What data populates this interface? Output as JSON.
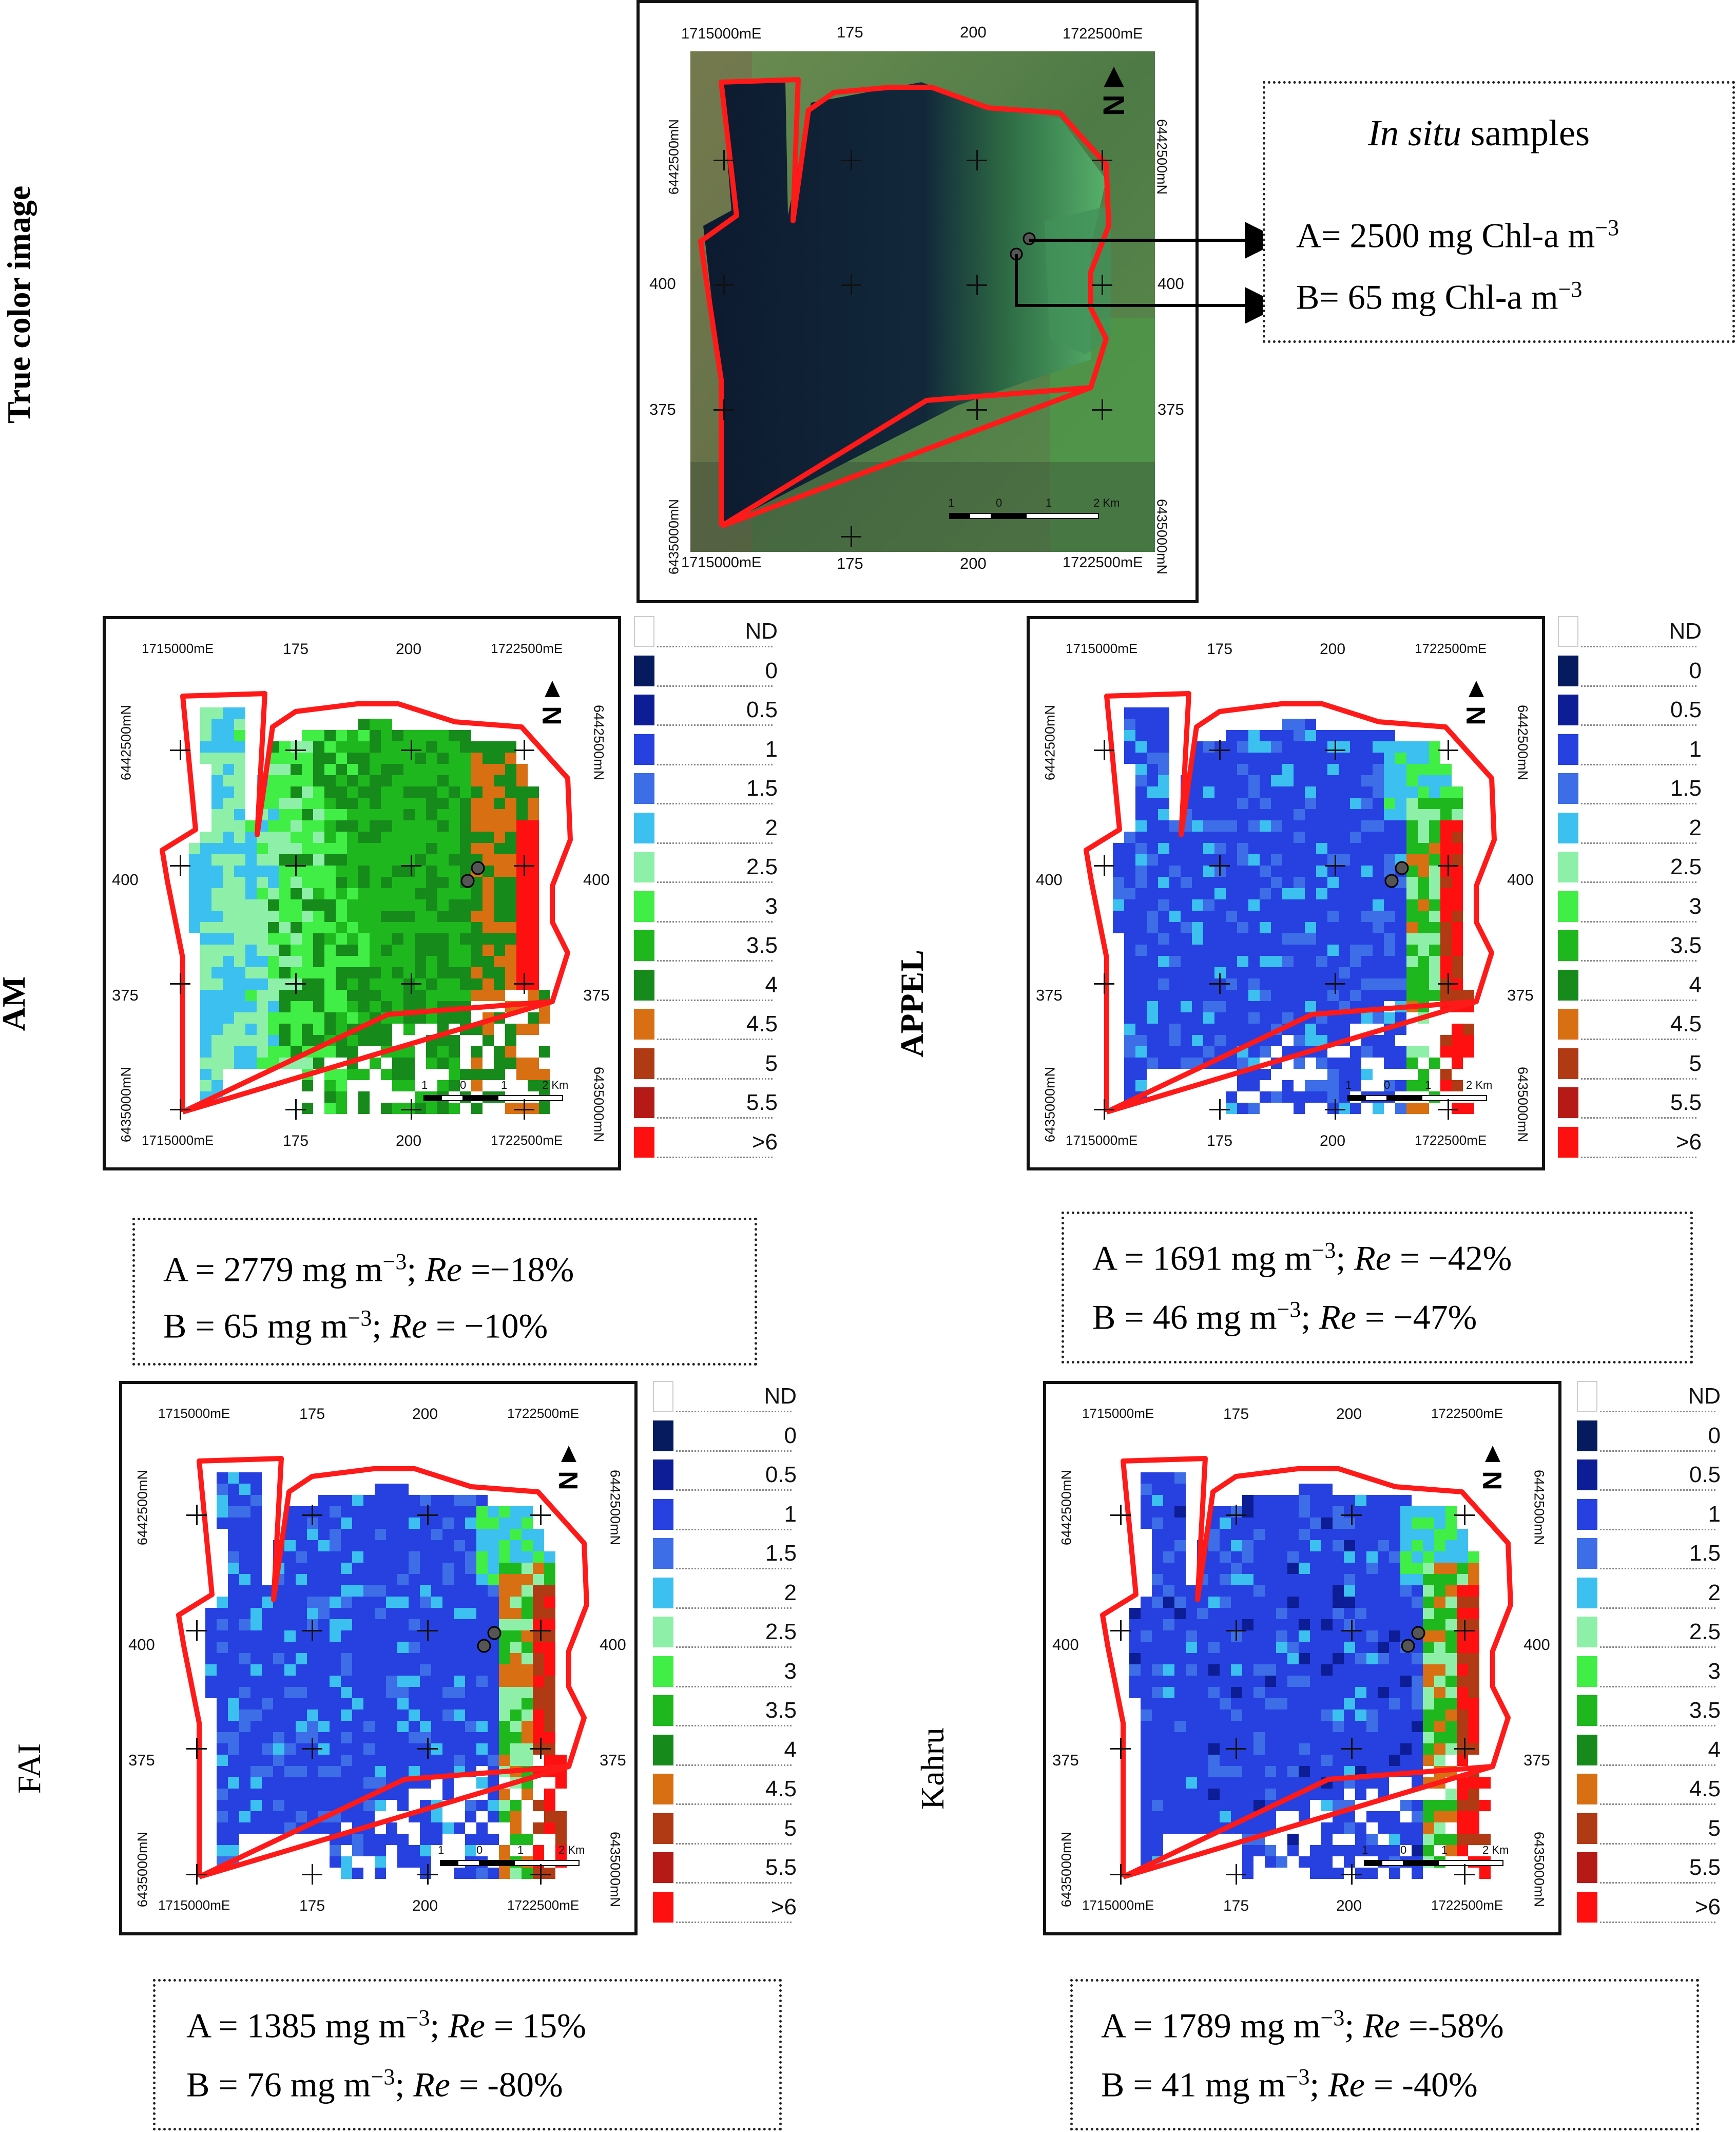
{
  "true_color": {
    "row_label": "True color image",
    "top_ticks": [
      "1715000mE",
      "175",
      "200",
      "1722500mE"
    ],
    "bottom_ticks": [
      "1715000mE",
      "175",
      "200",
      "1722500mE"
    ],
    "side_ticks": [
      "6442500mN",
      "400",
      "375",
      "6435000mN"
    ],
    "scale": [
      "1",
      "0",
      "1",
      "2 Km"
    ],
    "north": "N"
  },
  "insitu": {
    "title_italic": "In situ",
    "title_rest": " samples",
    "a": "A= 2500 mg Chl-a m",
    "a_exp": "−3",
    "b": "B= 65 mg Chl-a m",
    "b_exp": "−3"
  },
  "legend_labels": [
    "ND",
    "0",
    "0.5",
    "1",
    "1.5",
    "2",
    "2.5",
    "3",
    "3.5",
    "4",
    "4.5",
    "5",
    "5.5",
    ">6"
  ],
  "legend_colors": [
    "#ffffff",
    "#061a5e",
    "#0c1d96",
    "#2740e0",
    "#3d6ee8",
    "#3cc0ef",
    "#8ef0a8",
    "#41ee45",
    "#1eb81e",
    "#168a1b",
    "#d86f12",
    "#b03a14",
    "#b51a16",
    "#ff1010"
  ],
  "map_ticks": {
    "top": [
      "1715000mE",
      "175",
      "200",
      "1722500mE"
    ],
    "bottom": [
      "1715000mE",
      "175",
      "200",
      "1722500mE"
    ],
    "left_top": "6442500mN",
    "left_bottom": "6435000mN",
    "rows": [
      "400",
      "375"
    ],
    "scale": [
      "1",
      "0",
      "1",
      "2 Km"
    ],
    "north": "N"
  },
  "panels": {
    "am": {
      "label": "AM",
      "a_val": "A = 2779 mg m",
      "a_exp": "−3",
      "a_sep": "; ",
      "a_re_lbl": "Re",
      "a_re_val": " =−18%",
      "b_val": "B = 65 mg m",
      "b_exp": "−3",
      "b_sep": "; ",
      "b_re_lbl": "Re",
      "b_re_val": " = −10%"
    },
    "appel": {
      "label": "APPEL",
      "a_val": "A = 1691 mg m",
      "a_exp": "−3",
      "a_sep": "; ",
      "a_re_lbl": "Re",
      "a_re_val": " = −42%",
      "b_val": "B = 46 mg m",
      "b_exp": "−3",
      "b_sep": "; ",
      "b_re_lbl": "Re",
      "b_re_val": " = −47%"
    },
    "fai": {
      "label": "FAI",
      "a_val": "A = 1385 mg m",
      "a_exp": "−3",
      "a_sep": "; ",
      "a_re_lbl": "Re",
      "a_re_val": " = 15%",
      "b_val": "B = 76 mg m",
      "b_exp": "−3",
      "b_sep": "; ",
      "b_re_lbl": "Re",
      "b_re_val": " = -80%"
    },
    "kahru": {
      "label": "Kahru",
      "a_val": "A = 1789 mg m",
      "a_exp": "−3",
      "a_sep": "; ",
      "a_re_lbl": "Re",
      "a_re_val": " =-58%",
      "b_val": "B = 41 mg m",
      "b_exp": "−3",
      "b_sep": "; ",
      "b_re_lbl": "Re",
      "b_re_val": " = -40%"
    }
  }
}
